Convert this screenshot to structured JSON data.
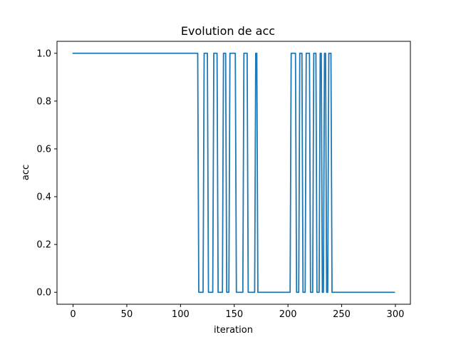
{
  "chart_data": {
    "type": "line",
    "title": "Evolution de acc",
    "xlabel": "iteration",
    "ylabel": "acc",
    "xlim": [
      -14.95,
      313.95
    ],
    "ylim": [
      -0.05,
      1.05
    ],
    "xticks": [
      0,
      50,
      100,
      150,
      200,
      250,
      300
    ],
    "yticks": [
      0.0,
      0.2,
      0.4,
      0.6,
      0.8,
      1.0
    ],
    "xtick_labels": [
      "0",
      "50",
      "100",
      "150",
      "200",
      "250",
      "300"
    ],
    "ytick_labels": [
      "0.0",
      "0.2",
      "0.4",
      "0.6",
      "0.8",
      "1.0"
    ],
    "grid": false,
    "line_color": "#1f77b4",
    "series": [
      {
        "x": [
          0,
          116,
          117,
          121,
          122,
          125,
          126,
          130,
          131,
          134,
          135,
          139,
          140,
          142,
          143,
          145,
          146,
          151,
          152,
          158,
          159,
          162,
          163,
          169,
          170,
          171,
          172,
          202,
          203,
          207,
          208,
          210,
          211,
          213,
          214,
          216,
          217,
          220,
          221,
          223,
          224,
          226,
          227,
          229,
          230,
          231,
          232,
          233,
          234,
          235,
          236,
          237,
          238,
          240,
          241,
          299
        ],
        "y": [
          1,
          1,
          0,
          0,
          1,
          1,
          0,
          0,
          1,
          1,
          0,
          0,
          1,
          1,
          0,
          0,
          1,
          1,
          0,
          0,
          1,
          1,
          0,
          0,
          1,
          1,
          0,
          0,
          1,
          1,
          0,
          0,
          1,
          1,
          0,
          0,
          1,
          1,
          0,
          0,
          1,
          1,
          0,
          0,
          1,
          1,
          0,
          0,
          1,
          1,
          0,
          0,
          1,
          1,
          0,
          0
        ]
      }
    ]
  }
}
